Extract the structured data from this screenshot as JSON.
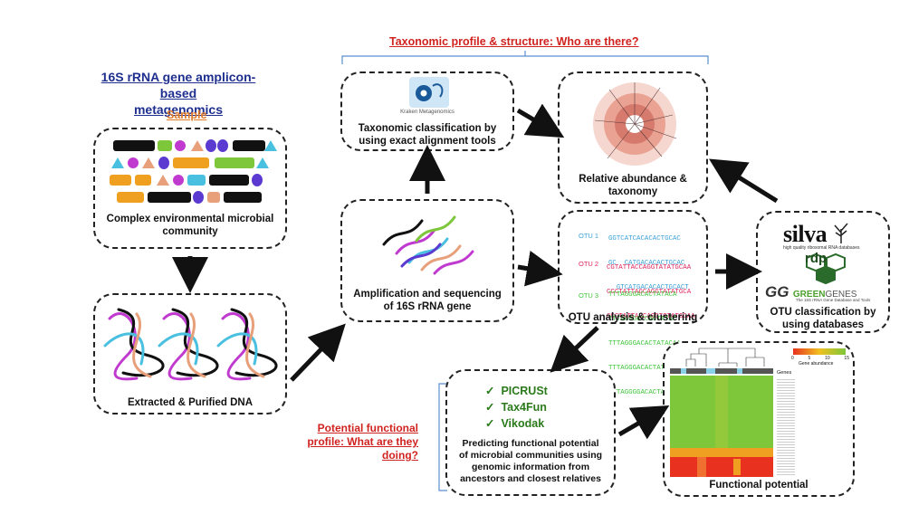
{
  "title": {
    "line1": "16S rRNA gene amplicon-based",
    "line2": "metagenomics"
  },
  "taxonomic_header": "Taxonomic profile & structure: Who are there?",
  "sample_label": "Sample",
  "boxes": {
    "community": {
      "caption_line1": "Complex environmental microbial",
      "caption_line2": "community"
    },
    "dna": {
      "caption": "Extracted & Purified DNA"
    },
    "amplification": {
      "caption_line1": "Amplification and sequencing",
      "caption_line2": "of 16S rRNA gene"
    },
    "kraken": {
      "logo_text": "Kraken Metagenomics",
      "caption_line1": "Taxonomic classification by",
      "caption_line2": "using exact alignment tools"
    },
    "relative": {
      "caption_line1": "Relative abundance &",
      "caption_line2": "taxonomy"
    },
    "otu": {
      "caption": "OTU analysis & clustering",
      "labels": [
        "OTU 1",
        "OTU 2",
        "OTU 3"
      ],
      "otu1": [
        "GGTCATCACACACTGCAC",
        "GC  CATGACACACTGCAC",
        "  GTCATGACACACTGCACT"
      ],
      "otu2": [
        "CGTATTACCAGGTATATGCAA",
        "CCCTATTAGCAGGTATATGCA",
        "CCGTATTAGCAGGTGTATGCAA"
      ],
      "otu3": [
        "TTTAGGGACACTATACA",
        "TTTAGGGGTCACTATAC",
        "TTTAGGGACACTATACAA",
        "TTTAGGGACACTATACAA",
        "TTTAGGGGACACTATACAA"
      ],
      "colors": [
        "#3aa0d8",
        "#e0245e",
        "#3ec43a"
      ]
    },
    "databases": {
      "silva": "silva",
      "silva_sub": "high quality ribosomal RNA databases",
      "rdp": "rdp",
      "greengenes_gg": "GG",
      "greengenes_green": "GREEN",
      "greengenes_genes": "GENES",
      "greengenes_sub": "The 16S rRNA Gene Database and Tools",
      "caption_line1": "OTU classification by",
      "caption_line2": "using databases"
    },
    "functional_tools": {
      "tools": [
        "PICRUSt",
        "Tax4Fun",
        "Vikodak"
      ],
      "check": "✓",
      "caption_line1": "Predicting functional potential",
      "caption_line2": "of microbial communities using",
      "caption_line3": "genomic information from",
      "caption_line4": "ancestors and closest relatives"
    },
    "heatmap": {
      "caption": "Functional potential",
      "legend_label": "Gene abundance",
      "legend_ticks": [
        "0",
        "5",
        "10",
        "15"
      ],
      "col_header": "Genes"
    }
  },
  "functional_header": {
    "line1": "Potential functional",
    "line2": "profile: What are they",
    "line3": "doing?"
  },
  "colors": {
    "title_blue": "#1f2f8f",
    "header_red": "#d0231f",
    "sample_orange": "#e07b2a",
    "tool_green": "#2a7a1a",
    "heatmap_green": "#7ec63a",
    "heatmap_red": "#e8321f"
  }
}
